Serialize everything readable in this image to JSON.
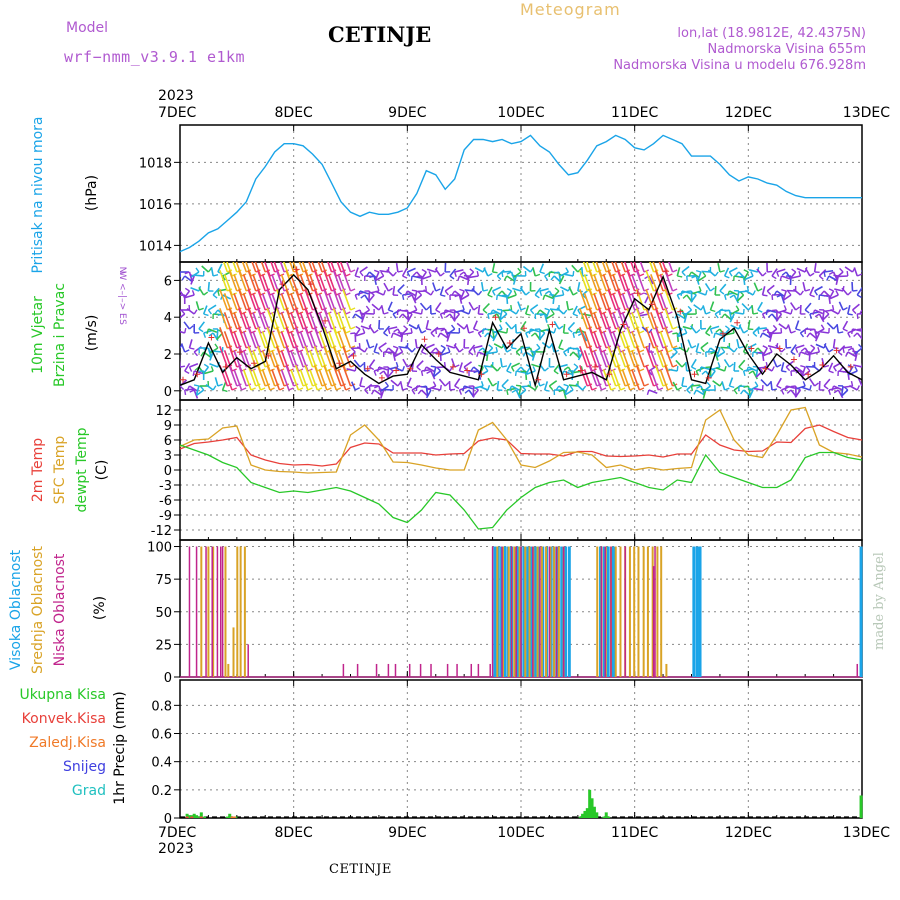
{
  "header": {
    "model_label": "Model",
    "model_name": "wrf−nmm_v3.9.1 e1km",
    "station": "CETINJE",
    "meteogram": "Meteogram",
    "lonlat": "lon,lat (18.9812E, 42.4375N)",
    "elev": "Nadmorska Visina 655m",
    "elev_model": "Nadmorska Visina u modelu 676.928m",
    "footer_station": "CETINJE",
    "credit": "made by Angel"
  },
  "time_axis": {
    "year": "2023",
    "labels": [
      "7DEC",
      "8DEC",
      "9DEC",
      "10DEC",
      "11DEC",
      "12DEC",
      "13DEC"
    ]
  },
  "colors": {
    "pressure": "#1aa4e8",
    "t2m": "#e8403a",
    "sfc": "#d9a326",
    "dewpt": "#28c828",
    "high_cloud": "#1aa4e8",
    "mid_cloud": "#d9a326",
    "low_cloud": "#c0248c",
    "total_precip": "#28c828",
    "conv_precip": "#e8403a",
    "frz_precip": "#f07a28",
    "snow": "#4040e0",
    "grad": "#20c0c0"
  },
  "panels": {
    "pressure": {
      "label": "Pritisak na nivou mora",
      "unit": "(hPa)"
    },
    "wind": {
      "label1": "10m Vjetar",
      "label2": "Brzina i Pravac",
      "unit": "(m/s)",
      "rose_n": "N",
      "rose_we": "W <–|–> E",
      "rose_s": "S"
    },
    "temp": {
      "l1": "2m Temp",
      "l2": "SFC Temp",
      "l3": "dewpt Temp",
      "unit": "(C)"
    },
    "cloud": {
      "l1": "Visoka Oblacnost",
      "l2": "Srednja Oblacnost",
      "l3": "Niska Oblacnost",
      "unit": "(%)"
    },
    "precip": {
      "unit": "1hr Precip (mm)",
      "legend": [
        "Ukupna Kisa",
        "Konvek.Kisa",
        "Zaledj.Kisa",
        "Snijeg",
        "Grad"
      ]
    }
  },
  "chart_data": [
    {
      "type": "line",
      "title": "Pritisak na nivou mora",
      "ylabel": "(hPa)",
      "x_unit": "hours from 7DEC 00",
      "ylim": [
        1013.2,
        1019.8
      ],
      "yticks": [
        1014,
        1016,
        1018
      ],
      "x": [
        0,
        2,
        4,
        6,
        8,
        10,
        12,
        14,
        16,
        18,
        20,
        22,
        24,
        26,
        28,
        30,
        32,
        34,
        36,
        38,
        40,
        42,
        44,
        46,
        48,
        50,
        52,
        54,
        56,
        58,
        60,
        62,
        64,
        66,
        68,
        70,
        72,
        74,
        76,
        78,
        80,
        82,
        84,
        86,
        88,
        90,
        92,
        94,
        96,
        98,
        100,
        102,
        104,
        106,
        108,
        110,
        112,
        114,
        116,
        118,
        120,
        122,
        124,
        126,
        128,
        130,
        132,
        134,
        136,
        138,
        140,
        142,
        144
      ],
      "series": [
        {
          "values": [
            1013.7,
            1013.9,
            1014.2,
            1014.6,
            1014.8,
            1015.2,
            1015.6,
            1016.1,
            1017.2,
            1017.8,
            1018.5,
            1018.9,
            1018.9,
            1018.8,
            1018.4,
            1017.9,
            1017.0,
            1016.1,
            1015.6,
            1015.4,
            1015.6,
            1015.5,
            1015.5,
            1015.6,
            1015.8,
            1016.5,
            1017.6,
            1017.4,
            1016.7,
            1017.2,
            1018.6,
            1019.1,
            1019.1,
            1019.0,
            1019.1,
            1018.9,
            1019.0,
            1019.3,
            1018.8,
            1018.5,
            1017.9,
            1017.4,
            1017.5,
            1018.1,
            1018.8,
            1019.0,
            1019.3,
            1019.1,
            1018.7,
            1018.6,
            1018.9,
            1019.3,
            1019.1,
            1018.9,
            1018.3,
            1018.3,
            1018.3,
            1017.9,
            1017.4,
            1017.1,
            1017.3,
            1017.2,
            1017.0,
            1016.9,
            1016.6,
            1016.4,
            1016.3,
            1016.3,
            1016.3,
            1016.3,
            1016.3,
            1016.3,
            1016.3
          ]
        }
      ]
    },
    {
      "type": "line",
      "title": "10m Vjetar Brzina i Pravac",
      "ylabel": "(m/s)",
      "x_unit": "hours from 7DEC 00",
      "ylim": [
        -0.5,
        7
      ],
      "yticks": [
        0,
        2,
        4,
        6
      ],
      "x": [
        0,
        3,
        6,
        9,
        12,
        15,
        18,
        21,
        24,
        27,
        30,
        33,
        36,
        39,
        42,
        45,
        48,
        51,
        54,
        57,
        60,
        63,
        66,
        69,
        72,
        75,
        78,
        81,
        84,
        87,
        90,
        93,
        96,
        99,
        102,
        105,
        108,
        111,
        114,
        117,
        120,
        123,
        126,
        129,
        132,
        135,
        138,
        141,
        144
      ],
      "series": [
        {
          "name": "speed",
          "values": [
            0.3,
            0.6,
            2.6,
            1.0,
            1.8,
            1.2,
            1.6,
            5.5,
            6.3,
            5.5,
            3.5,
            1.2,
            1.6,
            0.9,
            0.4,
            0.8,
            0.9,
            2.5,
            1.7,
            1.0,
            0.8,
            0.6,
            3.7,
            2.3,
            3.1,
            0.3,
            3.3,
            0.6,
            0.8,
            1.0,
            0.6,
            3.3,
            5.0,
            4.4,
            6.2,
            4.0,
            0.6,
            0.4,
            2.8,
            3.4,
            2.0,
            0.9,
            2.0,
            1.4,
            0.6,
            1.1,
            1.9,
            1.0,
            0.6
          ]
        }
      ]
    },
    {
      "type": "line",
      "title": "2m Temp / SFC Temp / dewpt Temp",
      "ylabel": "(C)",
      "x_unit": "hours from 7DEC 00",
      "ylim": [
        -14,
        14
      ],
      "yticks": [
        -12,
        -9,
        -6,
        -3,
        0,
        3,
        6,
        9,
        12
      ],
      "x": [
        0,
        3,
        6,
        9,
        12,
        15,
        18,
        21,
        24,
        27,
        30,
        33,
        36,
        39,
        42,
        45,
        48,
        51,
        54,
        57,
        60,
        63,
        66,
        69,
        72,
        75,
        78,
        81,
        84,
        87,
        90,
        93,
        96,
        99,
        102,
        105,
        108,
        111,
        114,
        117,
        120,
        123,
        126,
        129,
        132,
        135,
        138,
        141,
        144
      ],
      "series": [
        {
          "name": "2m Temp",
          "values": [
            4.2,
            5.3,
            5.6,
            6.0,
            6.5,
            3.0,
            2.0,
            1.3,
            1.0,
            1.1,
            0.8,
            1.2,
            4.5,
            5.4,
            5.2,
            3.4,
            3.4,
            3.4,
            3.0,
            3.2,
            3.3,
            5.8,
            6.4,
            6.0,
            3.3,
            3.2,
            3.2,
            2.8,
            3.7,
            3.7,
            2.8,
            2.7,
            2.8,
            3.0,
            2.6,
            3.2,
            3.2,
            7.0,
            5.0,
            4.0,
            3.7,
            3.8,
            5.6,
            5.5,
            8.3,
            9.0,
            7.7,
            6.5,
            6.0
          ]
        },
        {
          "name": "SFC Temp",
          "values": [
            4.7,
            6.0,
            6.2,
            8.4,
            8.8,
            1.0,
            0.0,
            -0.3,
            -0.4,
            -0.6,
            -0.5,
            -0.4,
            7.0,
            9.0,
            6.0,
            1.6,
            1.5,
            1.0,
            0.4,
            0.0,
            0.0,
            8.0,
            9.5,
            6.0,
            1.0,
            0.5,
            1.8,
            3.5,
            3.6,
            3.0,
            0.5,
            1.0,
            0.0,
            0.5,
            0.0,
            0.3,
            0.5,
            10.0,
            12.0,
            6.0,
            3.0,
            2.5,
            7.0,
            12.0,
            12.5,
            5.0,
            3.5,
            3.2,
            2.6
          ]
        },
        {
          "name": "dewpt Temp",
          "values": [
            5.0,
            4.0,
            3.0,
            1.5,
            0.5,
            -2.5,
            -3.5,
            -4.5,
            -4.2,
            -4.5,
            -4.0,
            -3.5,
            -4.2,
            -5.5,
            -6.8,
            -9.5,
            -10.5,
            -8.0,
            -4.5,
            -5.0,
            -8.0,
            -11.8,
            -11.5,
            -8.0,
            -5.5,
            -3.5,
            -2.5,
            -2.0,
            -3.5,
            -2.5,
            -2.0,
            -1.5,
            -2.5,
            -3.5,
            -4.0,
            -2.0,
            -2.5,
            3.0,
            -0.5,
            -1.5,
            -2.5,
            -3.5,
            -3.5,
            -2.0,
            2.5,
            3.5,
            3.5,
            2.5,
            2.0
          ]
        }
      ]
    },
    {
      "type": "bar",
      "title": "Visoka / Srednja / Niska Oblacnost",
      "ylabel": "(%)",
      "x_unit": "hours from 7DEC 00",
      "ylim": [
        0,
        105
      ],
      "yticks": [
        0,
        25,
        50,
        75,
        100
      ],
      "series": [
        {
          "name": "Visoka Oblacnost",
          "x": [
            66.5,
            67.2,
            67.9,
            68.6,
            69.3,
            70.0,
            70.7,
            71.4,
            72.0,
            72.7,
            73.4,
            74.1,
            75.0,
            75.8,
            76.6,
            77.4,
            78.3,
            79.0,
            79.8,
            80.6,
            81.4,
            82.2,
            88.8,
            89.6,
            90.4,
            91.2,
            91.8,
            108.5,
            109.2,
            109.8,
            143.8
          ],
          "values": [
            100,
            100,
            100,
            100,
            100,
            100,
            100,
            100,
            100,
            100,
            100,
            100,
            100,
            100,
            100,
            100,
            100,
            100,
            100,
            100,
            100,
            100,
            100,
            100,
            100,
            100,
            100,
            100,
            100,
            100,
            100
          ]
        },
        {
          "name": "Srednja Oblacnost",
          "x": [
            4.5,
            6.0,
            7.0,
            9.6,
            10.2,
            11.3,
            12.1,
            12.8,
            13.7,
            67.0,
            68.2,
            69.4,
            70.6,
            71.7,
            72.9,
            73.8,
            74.6,
            75.5,
            76.4,
            77.3,
            78.2,
            79.0,
            80.0,
            81.0,
            88.1,
            89.0,
            89.9,
            91.0,
            92.0,
            93.0,
            94.0,
            95.0,
            95.9,
            96.8,
            97.9,
            98.8,
            99.8,
            100.8,
            101.6,
            102.7
          ],
          "values": [
            100,
            100,
            100,
            100,
            10,
            38,
            100,
            100,
            100,
            100,
            100,
            100,
            100,
            100,
            100,
            100,
            100,
            100,
            100,
            100,
            100,
            100,
            100,
            100,
            100,
            100,
            100,
            100,
            100,
            100,
            100,
            100,
            100,
            100,
            100,
            100,
            100,
            100,
            100,
            10
          ]
        },
        {
          "name": "Niska Oblacnost",
          "x": [
            2.0,
            3.5,
            5.5,
            6.8,
            7.9,
            8.6,
            9.0,
            14.4,
            34.5,
            37.5,
            41.5,
            44.0,
            45.5,
            48.5,
            50.8,
            53.0,
            56.5,
            58.5,
            61.5,
            63.0,
            65.5,
            66.0,
            68.0,
            70.0,
            71.0,
            72.0,
            74.5,
            76.0,
            78.0,
            79.5,
            81.0,
            89.0,
            89.8,
            91.0,
            94.0,
            100.0,
            100.3,
            143.0
          ],
          "values": [
            100,
            100,
            100,
            100,
            100,
            100,
            100,
            25,
            10,
            10,
            10,
            10,
            10,
            10,
            10,
            10,
            10,
            10,
            10,
            10,
            10,
            100,
            100,
            100,
            100,
            100,
            100,
            100,
            100,
            100,
            100,
            100,
            100,
            100,
            100,
            85,
            100,
            10
          ]
        }
      ]
    },
    {
      "type": "bar",
      "title": "1hr Precip",
      "ylabel": "1hr Precip (mm)",
      "x_unit": "hours from 7DEC 00",
      "ylim": [
        0,
        0.98
      ],
      "yticks": [
        0,
        0.2,
        0.4,
        0.6,
        0.8
      ],
      "series": [
        {
          "name": "Ukupna Kisa",
          "x": [
            1.5,
            2.0,
            2.5,
            3.0,
            3.5,
            4.0,
            4.5,
            5.2,
            10.0,
            10.5,
            11.3,
            11.8,
            84.5,
            85.0,
            85.5,
            86.0,
            86.5,
            87.0,
            87.5,
            88.0,
            89.5,
            90.0,
            90.5,
            143.8
          ],
          "values": [
            0.03,
            0.02,
            0.02,
            0.03,
            0.02,
            0.01,
            0.04,
            0.01,
            0.01,
            0.03,
            0.01,
            0.01,
            0.01,
            0.03,
            0.05,
            0.07,
            0.2,
            0.14,
            0.08,
            0.04,
            0.01,
            0.04,
            0.01,
            0.16
          ]
        },
        {
          "name": "Konvek.Kisa",
          "x": [
            1.5,
            2.5,
            4.5,
            11.3
          ],
          "values": [
            0.01,
            0.01,
            0.01,
            0.01
          ]
        },
        {
          "name": "Zaledj.Kisa",
          "x": [
            11.0,
            11.5
          ],
          "values": [
            0.01,
            0.01
          ]
        },
        {
          "name": "Snijeg",
          "x": [],
          "values": []
        },
        {
          "name": "Grad",
          "x": [],
          "values": []
        }
      ]
    }
  ]
}
